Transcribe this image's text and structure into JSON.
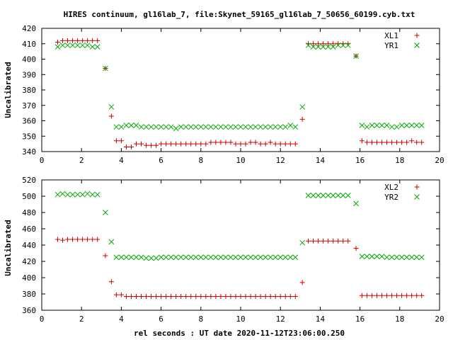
{
  "chart_data": [
    {
      "type": "scatter",
      "title": "HIRES continuum, gl16lab_7, file:Skynet_59165_gl16lab_7_50656_60199.cyb.txt",
      "xlabel": "",
      "ylabel": "Uncalibrated",
      "xlim": [
        0,
        20
      ],
      "ylim": [
        340,
        420
      ],
      "xticks": [
        0,
        2,
        4,
        6,
        8,
        10,
        12,
        14,
        16,
        18,
        20
      ],
      "yticks": [
        340,
        350,
        360,
        370,
        380,
        390,
        400,
        410,
        420
      ],
      "legend": "top-right",
      "series": [
        {
          "name": "XL1",
          "marker": "plus",
          "color": "#cc0000",
          "x": [
            0.8,
            1.05,
            1.3,
            1.55,
            1.8,
            2.05,
            2.3,
            2.55,
            2.8,
            3.2,
            3.5,
            3.75,
            4.0,
            4.25,
            4.5,
            4.75,
            5.0,
            5.25,
            5.5,
            5.75,
            6.0,
            6.25,
            6.5,
            6.75,
            7.0,
            7.25,
            7.5,
            7.75,
            8.0,
            8.25,
            8.5,
            8.75,
            9.0,
            9.25,
            9.5,
            9.75,
            10.0,
            10.25,
            10.5,
            10.75,
            11.0,
            11.25,
            11.5,
            11.75,
            12.0,
            12.25,
            12.5,
            12.75,
            13.1,
            13.4,
            13.65,
            13.9,
            14.15,
            14.4,
            14.65,
            14.9,
            15.15,
            15.4,
            15.8,
            16.1,
            16.35,
            16.6,
            16.85,
            17.1,
            17.35,
            17.6,
            17.85,
            18.1,
            18.35,
            18.6,
            18.85,
            19.1
          ],
          "y": [
            411,
            412,
            412,
            412,
            412,
            412,
            412,
            412,
            412,
            394,
            363,
            347,
            347,
            343,
            343,
            345,
            345,
            344,
            344,
            344,
            345,
            345,
            345,
            345,
            345,
            345,
            345,
            345,
            345,
            345,
            346,
            346,
            346,
            346,
            346,
            345,
            345,
            345,
            346,
            346,
            345,
            345,
            346,
            345,
            345,
            345,
            345,
            345,
            361,
            410,
            410,
            410,
            410,
            410,
            410,
            410,
            410,
            410,
            402,
            347,
            346,
            346,
            346,
            346,
            346,
            346,
            346,
            346,
            346,
            347,
            346,
            346
          ]
        },
        {
          "name": "YR1",
          "marker": "cross",
          "color": "#00aa00",
          "x": [
            0.8,
            1.05,
            1.3,
            1.55,
            1.8,
            2.05,
            2.3,
            2.55,
            2.8,
            3.2,
            3.5,
            3.75,
            4.0,
            4.25,
            4.5,
            4.75,
            5.0,
            5.25,
            5.5,
            5.75,
            6.0,
            6.25,
            6.5,
            6.75,
            7.0,
            7.25,
            7.5,
            7.75,
            8.0,
            8.25,
            8.5,
            8.75,
            9.0,
            9.25,
            9.5,
            9.75,
            10.0,
            10.25,
            10.5,
            10.75,
            11.0,
            11.25,
            11.5,
            11.75,
            12.0,
            12.25,
            12.5,
            12.75,
            13.1,
            13.4,
            13.65,
            13.9,
            14.15,
            14.4,
            14.65,
            14.9,
            15.15,
            15.4,
            15.8,
            16.1,
            16.35,
            16.6,
            16.85,
            17.1,
            17.35,
            17.6,
            17.85,
            18.1,
            18.35,
            18.6,
            18.85,
            19.1
          ],
          "y": [
            408,
            409,
            409,
            409,
            409,
            409,
            409,
            408,
            408,
            394,
            369,
            356,
            356,
            357,
            357,
            357,
            356,
            356,
            356,
            356,
            356,
            356,
            356,
            355,
            356,
            356,
            356,
            356,
            356,
            356,
            356,
            356,
            356,
            356,
            356,
            356,
            356,
            356,
            356,
            356,
            356,
            356,
            356,
            356,
            356,
            356,
            357,
            356,
            369,
            409,
            408,
            408,
            408,
            408,
            408,
            409,
            409,
            409,
            402,
            357,
            356,
            357,
            357,
            357,
            357,
            356,
            356,
            357,
            357,
            357,
            357,
            357
          ]
        }
      ]
    },
    {
      "type": "scatter",
      "title": "",
      "xlabel": "rel seconds : UT date 2020-11-12T23:06:00.250",
      "ylabel": "Uncalibrated",
      "xlim": [
        0,
        20
      ],
      "ylim": [
        360,
        520
      ],
      "xticks": [
        0,
        2,
        4,
        6,
        8,
        10,
        12,
        14,
        16,
        18,
        20
      ],
      "yticks": [
        360,
        380,
        400,
        420,
        440,
        460,
        480,
        500,
        520
      ],
      "legend": "top-right",
      "series": [
        {
          "name": "XL2",
          "marker": "plus",
          "color": "#cc0000",
          "x": [
            0.8,
            1.05,
            1.3,
            1.55,
            1.8,
            2.05,
            2.3,
            2.55,
            2.8,
            3.2,
            3.5,
            3.75,
            4.0,
            4.25,
            4.5,
            4.75,
            5.0,
            5.25,
            5.5,
            5.75,
            6.0,
            6.25,
            6.5,
            6.75,
            7.0,
            7.25,
            7.5,
            7.75,
            8.0,
            8.25,
            8.5,
            8.75,
            9.0,
            9.25,
            9.5,
            9.75,
            10.0,
            10.25,
            10.5,
            10.75,
            11.0,
            11.25,
            11.5,
            11.75,
            12.0,
            12.25,
            12.5,
            12.75,
            13.1,
            13.4,
            13.65,
            13.9,
            14.15,
            14.4,
            14.65,
            14.9,
            15.15,
            15.4,
            15.8,
            16.1,
            16.35,
            16.6,
            16.85,
            17.1,
            17.35,
            17.6,
            17.85,
            18.1,
            18.35,
            18.6,
            18.85,
            19.1
          ],
          "y": [
            447,
            446,
            447,
            447,
            447,
            447,
            447,
            447,
            447,
            427,
            395,
            379,
            379,
            377,
            377,
            377,
            377,
            377,
            377,
            377,
            377,
            377,
            377,
            377,
            377,
            377,
            377,
            377,
            377,
            377,
            377,
            377,
            377,
            377,
            377,
            377,
            377,
            377,
            377,
            377,
            377,
            377,
            377,
            377,
            377,
            377,
            377,
            377,
            394,
            445,
            445,
            445,
            445,
            445,
            445,
            445,
            445,
            445,
            436,
            378,
            378,
            378,
            378,
            378,
            378,
            378,
            378,
            378,
            378,
            378,
            378,
            378
          ]
        },
        {
          "name": "YR2",
          "marker": "cross",
          "color": "#00aa00",
          "x": [
            0.8,
            1.05,
            1.3,
            1.55,
            1.8,
            2.05,
            2.3,
            2.55,
            2.8,
            3.2,
            3.5,
            3.75,
            4.0,
            4.25,
            4.5,
            4.75,
            5.0,
            5.25,
            5.5,
            5.75,
            6.0,
            6.25,
            6.5,
            6.75,
            7.0,
            7.25,
            7.5,
            7.75,
            8.0,
            8.25,
            8.5,
            8.75,
            9.0,
            9.25,
            9.5,
            9.75,
            10.0,
            10.25,
            10.5,
            10.75,
            11.0,
            11.25,
            11.5,
            11.75,
            12.0,
            12.25,
            12.5,
            12.75,
            13.1,
            13.4,
            13.65,
            13.9,
            14.15,
            14.4,
            14.65,
            14.9,
            15.15,
            15.4,
            15.8,
            16.1,
            16.35,
            16.6,
            16.85,
            17.1,
            17.35,
            17.6,
            17.85,
            18.1,
            18.35,
            18.6,
            18.85,
            19.1
          ],
          "y": [
            502,
            503,
            502,
            502,
            502,
            502,
            503,
            502,
            502,
            480,
            444,
            425,
            425,
            425,
            425,
            425,
            425,
            424,
            424,
            424,
            425,
            425,
            425,
            425,
            425,
            425,
            425,
            425,
            425,
            425,
            425,
            425,
            425,
            425,
            425,
            425,
            425,
            425,
            425,
            425,
            425,
            425,
            425,
            425,
            425,
            425,
            425,
            425,
            443,
            501,
            501,
            501,
            501,
            501,
            501,
            501,
            501,
            501,
            491,
            426,
            426,
            426,
            426,
            426,
            425,
            425,
            425,
            425,
            425,
            425,
            425,
            425
          ]
        }
      ]
    }
  ]
}
